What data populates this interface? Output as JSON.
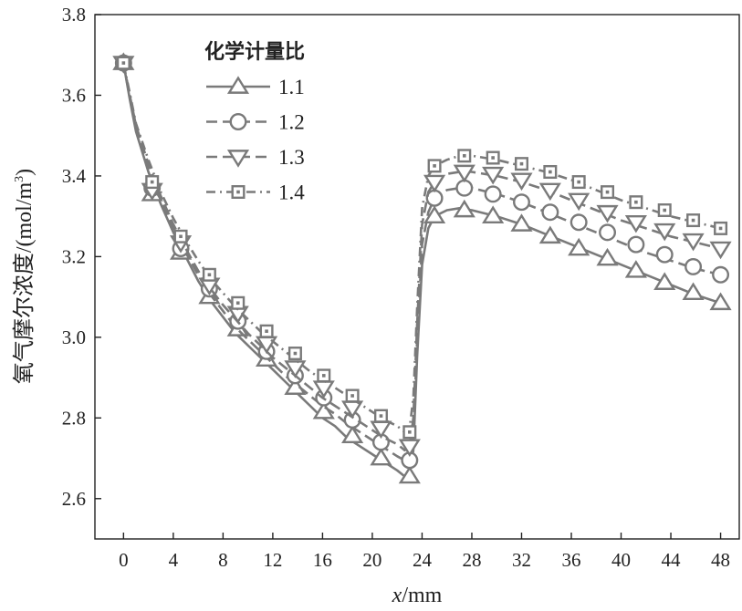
{
  "chart_data": {
    "type": "line",
    "xlabel_var": "x",
    "xlabel_unit": "/mm",
    "ylabel": "氧气摩尔浓度/(mol/m",
    "ylabel_sup": "3",
    "ylabel_close": ")",
    "xlim": [
      -2.3,
      49.5
    ],
    "ylim": [
      2.5,
      3.8
    ],
    "xticks": [
      0,
      4,
      8,
      12,
      16,
      20,
      24,
      28,
      32,
      36,
      40,
      44,
      48
    ],
    "yticks": [
      2.6,
      2.8,
      3.0,
      3.2,
      3.4,
      3.6,
      3.8
    ],
    "ytick_labels": [
      "2.6",
      "2.8",
      "3.0",
      "3.2",
      "3.4",
      "3.6",
      "3.8"
    ],
    "grid": false,
    "legend_position": "top-left",
    "legend_title": "化学计量比",
    "series": [
      {
        "name": "1.1",
        "marker": "triangle-up",
        "dash": "",
        "line": [
          [
            0,
            3.68
          ],
          [
            0.5,
            3.59
          ],
          [
            1,
            3.51
          ],
          [
            2,
            3.41
          ],
          [
            3,
            3.33
          ],
          [
            4,
            3.26
          ],
          [
            5,
            3.2
          ],
          [
            6,
            3.14
          ],
          [
            7,
            3.09
          ],
          [
            8,
            3.05
          ],
          [
            9,
            3.01
          ],
          [
            10,
            2.98
          ],
          [
            11,
            2.95
          ],
          [
            12,
            2.92
          ],
          [
            13,
            2.89
          ],
          [
            14,
            2.86
          ],
          [
            15,
            2.83
          ],
          [
            16,
            2.8
          ],
          [
            17,
            2.78
          ],
          [
            18,
            2.75
          ],
          [
            19,
            2.73
          ],
          [
            20,
            2.71
          ],
          [
            21,
            2.69
          ],
          [
            22,
            2.67
          ],
          [
            22.6,
            2.655
          ],
          [
            23,
            2.66
          ],
          [
            23.3,
            2.72
          ],
          [
            23.6,
            2.95
          ],
          [
            24,
            3.18
          ],
          [
            24.5,
            3.27
          ],
          [
            25,
            3.3
          ],
          [
            26,
            3.315
          ],
          [
            27,
            3.32
          ],
          [
            28,
            3.315
          ],
          [
            30,
            3.3
          ],
          [
            32,
            3.28
          ],
          [
            34,
            3.255
          ],
          [
            36,
            3.23
          ],
          [
            38,
            3.205
          ],
          [
            40,
            3.18
          ],
          [
            42,
            3.155
          ],
          [
            44,
            3.13
          ],
          [
            46,
            3.105
          ],
          [
            48,
            3.085
          ]
        ],
        "markers": [
          [
            0,
            3.68
          ],
          [
            2.3,
            3.355
          ],
          [
            4.6,
            3.21
          ],
          [
            6.9,
            3.1
          ],
          [
            9.2,
            3.02
          ],
          [
            11.5,
            2.945
          ],
          [
            13.8,
            2.875
          ],
          [
            16.1,
            2.815
          ],
          [
            18.4,
            2.755
          ],
          [
            20.7,
            2.7
          ],
          [
            23,
            2.655
          ],
          [
            25,
            3.3
          ],
          [
            27.4,
            3.315
          ],
          [
            29.7,
            3.3
          ],
          [
            32,
            3.28
          ],
          [
            34.3,
            3.25
          ],
          [
            36.6,
            3.22
          ],
          [
            38.9,
            3.195
          ],
          [
            41.2,
            3.165
          ],
          [
            43.5,
            3.135
          ],
          [
            45.8,
            3.11
          ],
          [
            48,
            3.085
          ]
        ]
      },
      {
        "name": "1.2",
        "marker": "circle",
        "dash": "12,6",
        "line": [
          [
            0,
            3.68
          ],
          [
            0.5,
            3.595
          ],
          [
            1,
            3.52
          ],
          [
            2,
            3.42
          ],
          [
            3,
            3.34
          ],
          [
            4,
            3.27
          ],
          [
            5,
            3.21
          ],
          [
            6,
            3.155
          ],
          [
            7,
            3.105
          ],
          [
            8,
            3.065
          ],
          [
            9,
            3.025
          ],
          [
            10,
            2.995
          ],
          [
            11,
            2.965
          ],
          [
            12,
            2.935
          ],
          [
            13,
            2.905
          ],
          [
            14,
            2.88
          ],
          [
            15,
            2.855
          ],
          [
            16,
            2.83
          ],
          [
            17,
            2.81
          ],
          [
            18,
            2.785
          ],
          [
            19,
            2.765
          ],
          [
            20,
            2.745
          ],
          [
            21,
            2.725
          ],
          [
            22,
            2.705
          ],
          [
            22.6,
            2.695
          ],
          [
            23,
            2.7
          ],
          [
            23.3,
            2.76
          ],
          [
            23.6,
            2.99
          ],
          [
            24,
            3.23
          ],
          [
            24.5,
            3.31
          ],
          [
            25,
            3.345
          ],
          [
            26,
            3.365
          ],
          [
            27,
            3.37
          ],
          [
            28,
            3.37
          ],
          [
            30,
            3.355
          ],
          [
            32,
            3.335
          ],
          [
            34,
            3.31
          ],
          [
            36,
            3.285
          ],
          [
            38,
            3.26
          ],
          [
            40,
            3.235
          ],
          [
            42,
            3.21
          ],
          [
            44,
            3.19
          ],
          [
            46,
            3.17
          ],
          [
            48,
            3.155
          ]
        ],
        "markers": [
          [
            0,
            3.68
          ],
          [
            2.3,
            3.37
          ],
          [
            4.6,
            3.22
          ],
          [
            6.9,
            3.12
          ],
          [
            9.2,
            3.04
          ],
          [
            11.5,
            2.965
          ],
          [
            13.8,
            2.905
          ],
          [
            16.1,
            2.85
          ],
          [
            18.4,
            2.795
          ],
          [
            20.7,
            2.74
          ],
          [
            23,
            2.695
          ],
          [
            25,
            3.345
          ],
          [
            27.4,
            3.37
          ],
          [
            29.7,
            3.355
          ],
          [
            32,
            3.335
          ],
          [
            34.3,
            3.31
          ],
          [
            36.6,
            3.285
          ],
          [
            38.9,
            3.26
          ],
          [
            41.2,
            3.23
          ],
          [
            43.5,
            3.205
          ],
          [
            45.8,
            3.175
          ],
          [
            48,
            3.155
          ]
        ]
      },
      {
        "name": "1.3",
        "marker": "triangle-down",
        "dash": "12,6",
        "line": [
          [
            0,
            3.68
          ],
          [
            0.5,
            3.6
          ],
          [
            1,
            3.525
          ],
          [
            2,
            3.43
          ],
          [
            3,
            3.35
          ],
          [
            4,
            3.28
          ],
          [
            5,
            3.22
          ],
          [
            6,
            3.165
          ],
          [
            7,
            3.12
          ],
          [
            8,
            3.08
          ],
          [
            9,
            3.045
          ],
          [
            10,
            3.01
          ],
          [
            11,
            2.98
          ],
          [
            12,
            2.95
          ],
          [
            13,
            2.925
          ],
          [
            14,
            2.9
          ],
          [
            15,
            2.875
          ],
          [
            16,
            2.85
          ],
          [
            17,
            2.83
          ],
          [
            18,
            2.81
          ],
          [
            19,
            2.79
          ],
          [
            20,
            2.77
          ],
          [
            21,
            2.75
          ],
          [
            22,
            2.735
          ],
          [
            22.6,
            2.72
          ],
          [
            23,
            2.73
          ],
          [
            23.3,
            2.8
          ],
          [
            23.6,
            3.03
          ],
          [
            24,
            3.28
          ],
          [
            24.5,
            3.36
          ],
          [
            25,
            3.385
          ],
          [
            26,
            3.405
          ],
          [
            27,
            3.41
          ],
          [
            28,
            3.41
          ],
          [
            30,
            3.4
          ],
          [
            32,
            3.385
          ],
          [
            34,
            3.365
          ],
          [
            36,
            3.34
          ],
          [
            38,
            3.315
          ],
          [
            40,
            3.29
          ],
          [
            42,
            3.27
          ],
          [
            44,
            3.25
          ],
          [
            46,
            3.235
          ],
          [
            48,
            3.22
          ]
        ],
        "markers": [
          [
            0,
            3.68
          ],
          [
            2.3,
            3.365
          ],
          [
            4.6,
            3.235
          ],
          [
            6.9,
            3.13
          ],
          [
            9.2,
            3.06
          ],
          [
            11.5,
            2.985
          ],
          [
            13.8,
            2.925
          ],
          [
            16.1,
            2.875
          ],
          [
            18.4,
            2.825
          ],
          [
            20.7,
            2.775
          ],
          [
            23,
            2.73
          ],
          [
            25,
            3.385
          ],
          [
            27.4,
            3.41
          ],
          [
            29.7,
            3.405
          ],
          [
            32,
            3.39
          ],
          [
            34.3,
            3.365
          ],
          [
            36.6,
            3.34
          ],
          [
            38.9,
            3.31
          ],
          [
            41.2,
            3.285
          ],
          [
            43.5,
            3.265
          ],
          [
            45.8,
            3.24
          ],
          [
            48,
            3.22
          ]
        ]
      },
      {
        "name": "1.4",
        "marker": "square",
        "dash": "10,5,2,5",
        "line": [
          [
            0,
            3.68
          ],
          [
            0.5,
            3.605
          ],
          [
            1,
            3.53
          ],
          [
            2,
            3.44
          ],
          [
            3,
            3.36
          ],
          [
            4,
            3.295
          ],
          [
            5,
            3.24
          ],
          [
            6,
            3.19
          ],
          [
            7,
            3.145
          ],
          [
            8,
            3.11
          ],
          [
            9,
            3.075
          ],
          [
            10,
            3.045
          ],
          [
            11,
            3.015
          ],
          [
            12,
            2.99
          ],
          [
            13,
            2.965
          ],
          [
            14,
            2.94
          ],
          [
            15,
            2.915
          ],
          [
            16,
            2.895
          ],
          [
            17,
            2.875
          ],
          [
            18,
            2.855
          ],
          [
            19,
            2.835
          ],
          [
            20,
            2.815
          ],
          [
            21,
            2.795
          ],
          [
            22,
            2.78
          ],
          [
            22.6,
            2.765
          ],
          [
            23,
            2.775
          ],
          [
            23.3,
            2.85
          ],
          [
            23.6,
            3.07
          ],
          [
            24,
            3.32
          ],
          [
            24.5,
            3.4
          ],
          [
            25,
            3.425
          ],
          [
            26,
            3.44
          ],
          [
            27,
            3.45
          ],
          [
            28,
            3.45
          ],
          [
            30,
            3.44
          ],
          [
            32,
            3.425
          ],
          [
            34,
            3.41
          ],
          [
            36,
            3.39
          ],
          [
            38,
            3.365
          ],
          [
            40,
            3.34
          ],
          [
            42,
            3.32
          ],
          [
            44,
            3.3
          ],
          [
            46,
            3.285
          ],
          [
            48,
            3.27
          ]
        ],
        "markers": [
          [
            0,
            3.68
          ],
          [
            2.3,
            3.385
          ],
          [
            4.6,
            3.25
          ],
          [
            6.9,
            3.155
          ],
          [
            9.2,
            3.085
          ],
          [
            11.5,
            3.015
          ],
          [
            13.8,
            2.96
          ],
          [
            16.1,
            2.905
          ],
          [
            18.4,
            2.855
          ],
          [
            20.7,
            2.805
          ],
          [
            23,
            2.765
          ],
          [
            25,
            3.425
          ],
          [
            27.4,
            3.45
          ],
          [
            29.7,
            3.445
          ],
          [
            32,
            3.43
          ],
          [
            34.3,
            3.41
          ],
          [
            36.6,
            3.385
          ],
          [
            38.9,
            3.36
          ],
          [
            41.2,
            3.335
          ],
          [
            43.5,
            3.315
          ],
          [
            45.8,
            3.29
          ],
          [
            48,
            3.27
          ]
        ]
      }
    ]
  },
  "style": {
    "line_color": "#7a7a7a",
    "marker_fill": "#ffffff",
    "axis_color": "#222222"
  }
}
